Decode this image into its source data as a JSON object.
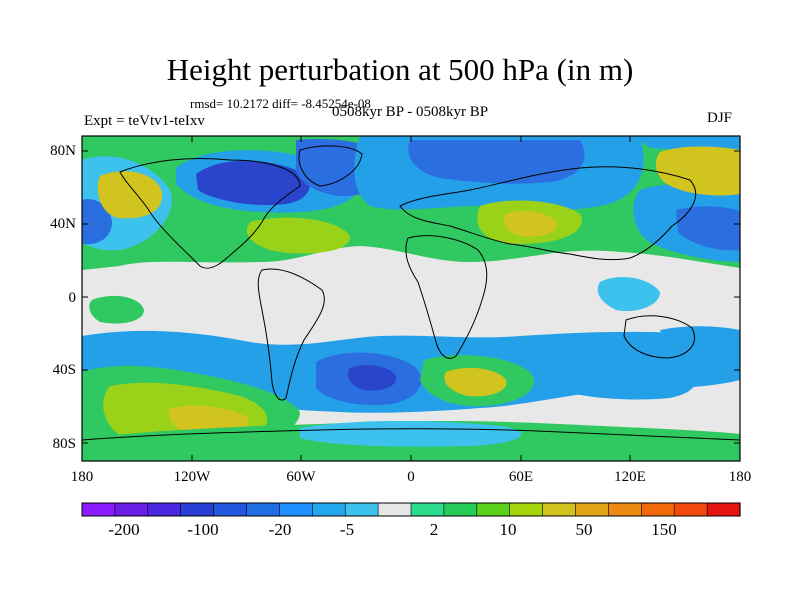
{
  "title": "Height perturbation at 500 hPa (in m)",
  "stats_text": "rmsd= 10.2172 diff= -8.45254e-08",
  "period_text": "0508kyr BP - 0508kyr BP",
  "expt_text": "Expt = teVtv1-teIxv",
  "season": "DJF",
  "map": {
    "lon_range": [
      -180,
      180
    ],
    "lat_range": [
      -90,
      90
    ],
    "lat_tick_labels": [
      "80N",
      "40N",
      "0",
      "40S",
      "80S"
    ],
    "lon_tick_labels": [
      "180",
      "120W",
      "60W",
      "0",
      "60E",
      "120E",
      "180"
    ]
  },
  "colorbar": {
    "colors": [
      "#8c1aff",
      "#6a1ee6",
      "#4b28e0",
      "#2a3fd6",
      "#2256de",
      "#1f6fe3",
      "#1e90ff",
      "#22a8ec",
      "#3cc2ec",
      "#e6e6e6",
      "#2cdc8c",
      "#26cc58",
      "#5cd11a",
      "#a6d40a",
      "#d2c21e",
      "#e0a414",
      "#ec8a12",
      "#f06a0c",
      "#f24a0c",
      "#e61410"
    ],
    "labels": [
      "-200",
      "-100",
      "-20",
      "-5",
      "2",
      "10",
      "50",
      "150"
    ]
  },
  "field_colors": {
    "deep_blue": "#2a45cc",
    "blue": "#2a6ee0",
    "light_blue": "#23a0e8",
    "cyan": "#3cc2ec",
    "near_zero": "#e8e8e8",
    "green": "#30c860",
    "yellow_green": "#9ad21a",
    "yellow": "#d2c41e",
    "orange": "#e3a012",
    "dark_orange": "#ec8a12"
  }
}
